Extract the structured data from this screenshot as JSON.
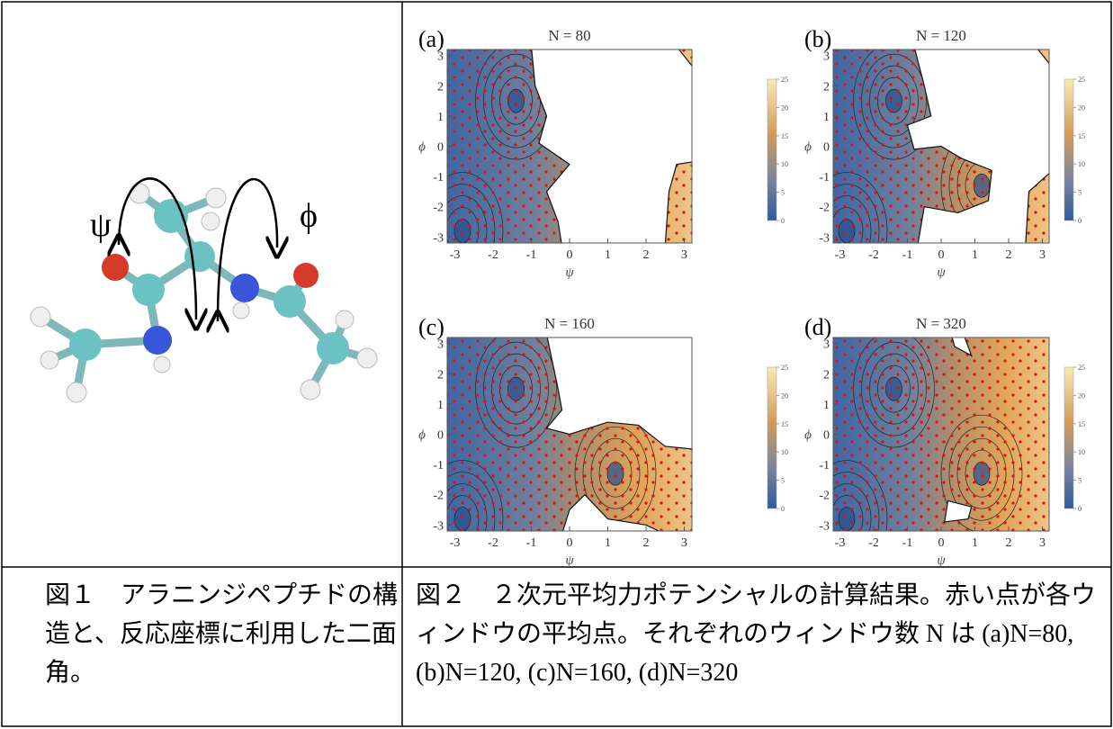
{
  "figure1": {
    "caption": "図１　アラニンジペプチドの構造と、反応座標に利用した二面角。",
    "psi": "ψ",
    "phi": "ϕ"
  },
  "figure2": {
    "caption": "図２　２次元平均力ポテンシャルの計算結果。赤い点が各ウィンドウの平均点。それぞれのウィンドウ数 N は (a)N=80, (b)N=120, (c)N=160, (d)N=320",
    "x_label": "ψ",
    "y_label": "ϕ",
    "xlim": [
      -3.2,
      3.2
    ],
    "ylim": [
      -3.2,
      3.2
    ],
    "xticks": [
      -3,
      -2,
      -1,
      0,
      1,
      2,
      3
    ],
    "yticks": [
      -3,
      -2,
      -1,
      0,
      1,
      2,
      3
    ],
    "colorbar_range": [
      0,
      25
    ],
    "colorbar_ticks": [
      0,
      5,
      10,
      15,
      20,
      25
    ],
    "panels": [
      {
        "label": "(a)",
        "title": "N = 80"
      },
      {
        "label": "(b)",
        "title": "N = 120"
      },
      {
        "label": "(c)",
        "title": "N = 160"
      },
      {
        "label": "(d)",
        "title": "N = 320"
      }
    ]
  }
}
